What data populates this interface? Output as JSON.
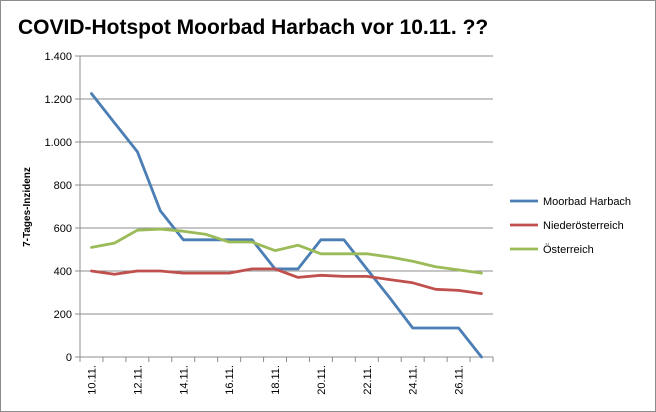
{
  "chart_data": {
    "type": "line",
    "title": "COVID-Hotspot Moorbad Harbach vor 10.11. ??",
    "xlabel": "",
    "ylabel": "7-Tages-Inzidenz",
    "ylim": [
      0,
      1400
    ],
    "y_ticks": [
      0,
      200,
      400,
      600,
      800,
      1000,
      1200,
      1400
    ],
    "y_tick_labels": [
      "0",
      "200",
      "400",
      "600",
      "800",
      "1.000",
      "1.200",
      "1.400"
    ],
    "x": [
      "10.11.",
      "11.11.",
      "12.11.",
      "13.11.",
      "14.11.",
      "15.11.",
      "16.11.",
      "17.11.",
      "18.11.",
      "19.11.",
      "20.11.",
      "21.11.",
      "22.11.",
      "23.11.",
      "24.11.",
      "25.11.",
      "26.11.",
      "27.11."
    ],
    "x_tick_labels": [
      "10.11.",
      "",
      "12.11.",
      "",
      "14.11.",
      "",
      "16.11.",
      "",
      "18.11.",
      "",
      "20.11.",
      "",
      "22.11.",
      "",
      "24.11.",
      "",
      "26.11.",
      ""
    ],
    "grid": "horizontal",
    "legend_position": "right",
    "series": [
      {
        "name": "Moorbad Harbach",
        "color": "#4a7eb5",
        "values": [
          1225,
          1090,
          955,
          680,
          545,
          545,
          545,
          545,
          410,
          410,
          545,
          545,
          410,
          275,
          135,
          135,
          135,
          0
        ]
      },
      {
        "name": "Niederösterreich",
        "color": "#c0504d",
        "values": [
          400,
          385,
          400,
          400,
          390,
          390,
          390,
          410,
          410,
          370,
          380,
          375,
          375,
          360,
          345,
          315,
          310,
          295
        ]
      },
      {
        "name": "Österreich",
        "color": "#9bbb59",
        "values": [
          510,
          530,
          590,
          595,
          585,
          570,
          535,
          535,
          495,
          520,
          480,
          480,
          480,
          465,
          445,
          420,
          405,
          390
        ]
      }
    ]
  }
}
